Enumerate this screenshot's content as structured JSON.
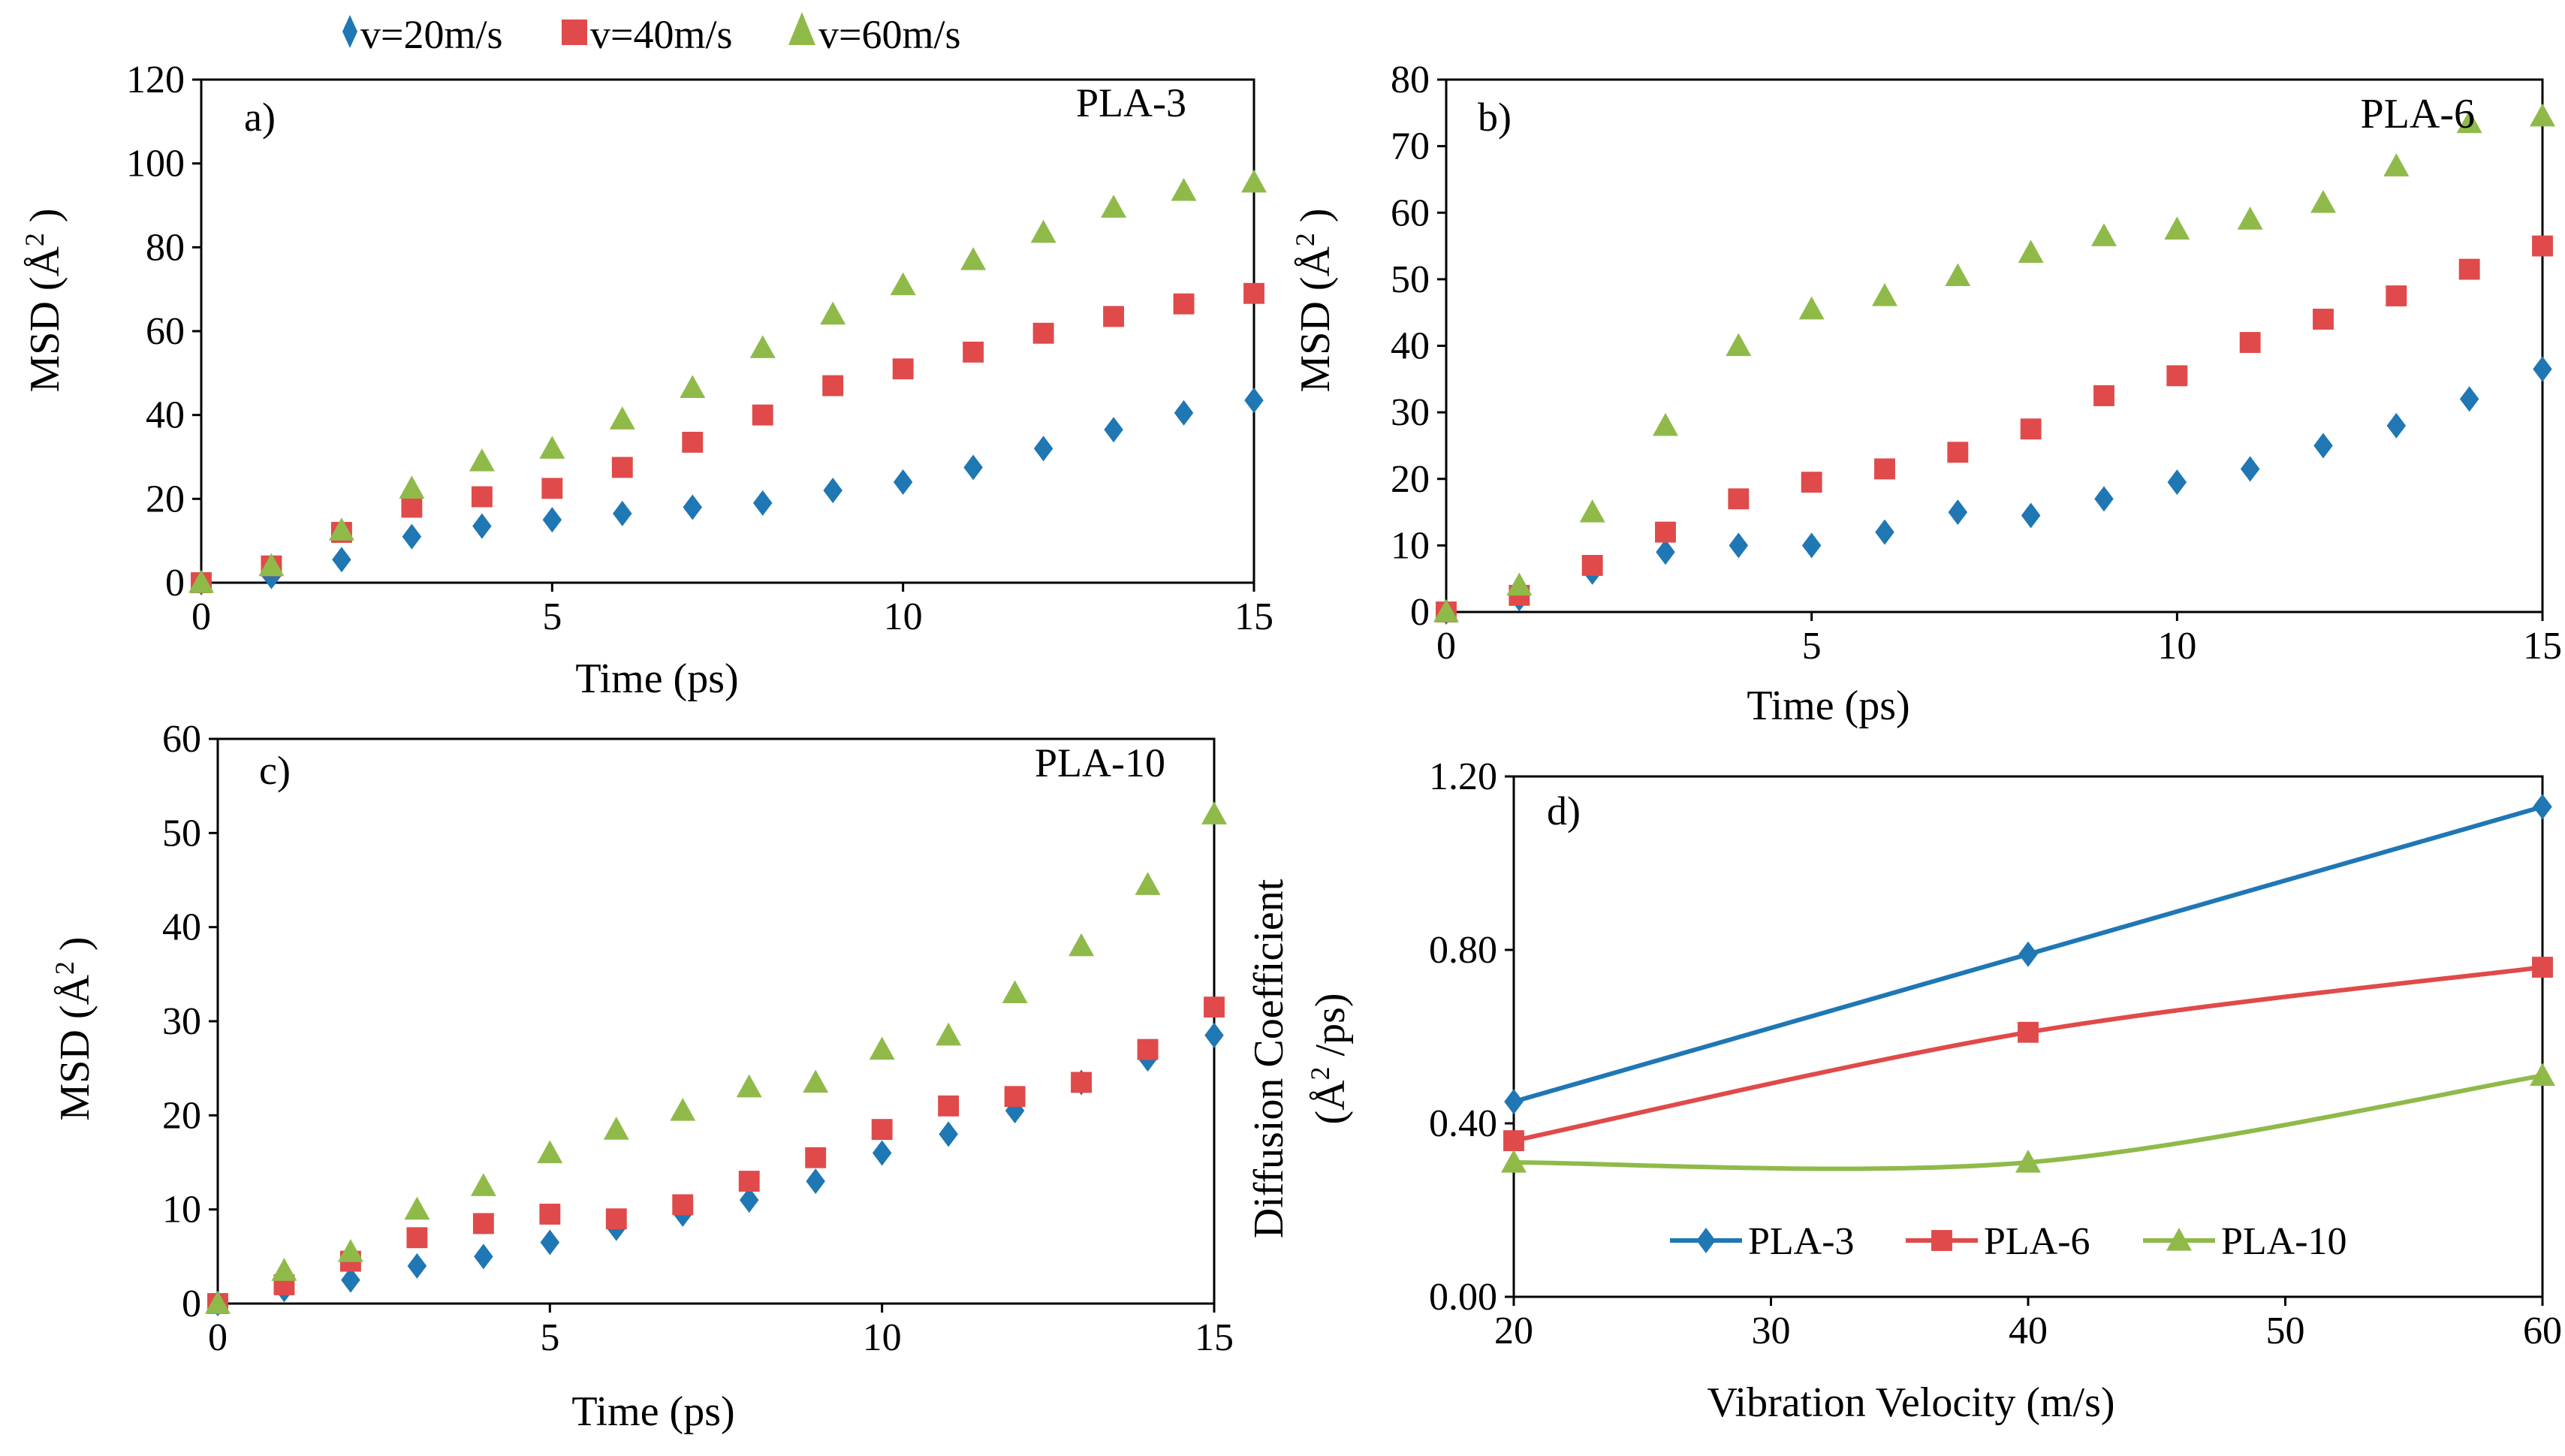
{
  "colors": {
    "series": [
      "#1f77b4",
      "#e04a4a",
      "#8fba4a"
    ],
    "axis": "#000000"
  },
  "legend_top": {
    "entries": [
      "v=20m/s",
      "v=40m/s",
      "v=60m/s"
    ]
  },
  "chart_data": [
    {
      "id": "a",
      "type": "scatter",
      "panel_label": "a)",
      "annotation": "PLA-3",
      "xlabel": "Time (ps)",
      "ylabel": "MSD (Å",
      "ylabel_sup": "2",
      "ylabel_end": " )",
      "xlim": [
        0,
        15
      ],
      "ylim": [
        0,
        120
      ],
      "xticks": [
        0,
        5,
        10,
        15
      ],
      "yticks": [
        0,
        20,
        40,
        60,
        80,
        100,
        120
      ],
      "x": [
        0,
        1,
        2,
        3,
        4,
        5,
        6,
        7,
        8,
        9,
        10,
        11,
        12,
        13,
        14,
        15
      ],
      "series": [
        {
          "name": "v=20m/s",
          "marker": "diamond",
          "values": [
            0,
            1.5,
            5.5,
            11,
            13.5,
            15,
            16.5,
            18,
            19,
            22,
            24,
            27.5,
            32,
            36.5,
            40.5,
            43.5
          ]
        },
        {
          "name": "v=40m/s",
          "marker": "square",
          "values": [
            0,
            4,
            12,
            18,
            20.5,
            22.5,
            27.5,
            33.5,
            40,
            47,
            51,
            55,
            59.5,
            63.5,
            66.5,
            69
          ]
        },
        {
          "name": "v=60m/s",
          "marker": "triangle",
          "values": [
            0,
            4,
            12.5,
            22.5,
            29,
            32,
            39,
            46.5,
            56,
            64,
            71,
            77,
            83.5,
            89.5,
            93.5,
            95.5
          ]
        }
      ]
    },
    {
      "id": "b",
      "type": "scatter",
      "panel_label": "b)",
      "annotation": "PLA-6",
      "xlabel": "Time (ps)",
      "ylabel": "MSD (Å",
      "ylabel_sup": "2",
      "ylabel_end": " )",
      "xlim": [
        0,
        15
      ],
      "ylim": [
        0,
        80
      ],
      "xticks": [
        0,
        5,
        10,
        15
      ],
      "yticks": [
        0,
        10,
        20,
        30,
        40,
        50,
        60,
        70,
        80
      ],
      "x": [
        0,
        1,
        2,
        3,
        4,
        5,
        6,
        7,
        8,
        9,
        10,
        11,
        12,
        13,
        14,
        15
      ],
      "series": [
        {
          "name": "v=20m/s",
          "marker": "diamond",
          "values": [
            0,
            2,
            6,
            9,
            10,
            10,
            12,
            15,
            14.5,
            17,
            19.5,
            21.5,
            25,
            28,
            32,
            36.5
          ]
        },
        {
          "name": "v=40m/s",
          "marker": "square",
          "values": [
            0,
            2.5,
            7,
            12,
            17,
            19.5,
            21.5,
            24,
            27.5,
            32.5,
            35.5,
            40.5,
            44,
            47.5,
            51.5,
            55
          ]
        },
        {
          "name": "v=60m/s",
          "marker": "triangle",
          "values": [
            0,
            4,
            15,
            28,
            40,
            45.5,
            47.5,
            50.5,
            54,
            56.5,
            57.5,
            59,
            61.5,
            67,
            73.5,
            74.5
          ]
        }
      ]
    },
    {
      "id": "c",
      "type": "scatter",
      "panel_label": "c)",
      "annotation": "PLA-10",
      "xlabel": "Time (ps)",
      "ylabel": "MSD (Å",
      "ylabel_sup": "2",
      "ylabel_end": " )",
      "xlim": [
        0,
        15
      ],
      "ylim": [
        0,
        60
      ],
      "xticks": [
        0,
        5,
        10,
        15
      ],
      "yticks": [
        0,
        10,
        20,
        30,
        40,
        50,
        60
      ],
      "x": [
        0,
        1,
        2,
        3,
        4,
        5,
        6,
        7,
        8,
        9,
        10,
        11,
        12,
        13,
        14,
        15
      ],
      "series": [
        {
          "name": "v=20m/s",
          "marker": "diamond",
          "values": [
            0,
            1.5,
            2.5,
            4,
            5,
            6.5,
            8,
            9.5,
            11,
            13,
            16,
            18,
            20.5,
            23.5,
            26,
            28.5
          ]
        },
        {
          "name": "v=40m/s",
          "marker": "square",
          "values": [
            0,
            2,
            4.5,
            7,
            8.5,
            9.5,
            9,
            10.5,
            13,
            15.5,
            18.5,
            21,
            22,
            23.5,
            27,
            31.5
          ]
        },
        {
          "name": "v=60m/s",
          "marker": "triangle",
          "values": [
            0,
            3.5,
            5.5,
            10,
            12.5,
            16,
            18.5,
            20.5,
            23,
            23.5,
            27,
            28.5,
            33,
            38,
            44.5,
            52
          ]
        }
      ]
    },
    {
      "id": "d",
      "type": "line",
      "panel_label": "d)",
      "xlabel": "Vibration Velocity (m/s)",
      "ylabel_line1": "Diffusion Coefficient",
      "ylabel_line2": "(Å",
      "ylabel_line2_sup": "2",
      "ylabel_line2_end": " /ps)",
      "xlim": [
        20,
        60
      ],
      "ylim": [
        0,
        1.2
      ],
      "xticks": [
        "20",
        "30",
        "40",
        "50",
        "60"
      ],
      "yticks": [
        "0.00",
        "0.40",
        "0.80",
        "1.20"
      ],
      "x": [
        20,
        40,
        60
      ],
      "series": [
        {
          "name": "PLA-3",
          "marker": "diamond",
          "values": [
            0.45,
            0.79,
            1.13
          ]
        },
        {
          "name": "PLA-6",
          "marker": "square",
          "values": [
            0.36,
            0.61,
            0.76
          ]
        },
        {
          "name": "PLA-10",
          "marker": "triangle",
          "values": [
            0.31,
            0.31,
            0.51
          ]
        }
      ]
    }
  ]
}
